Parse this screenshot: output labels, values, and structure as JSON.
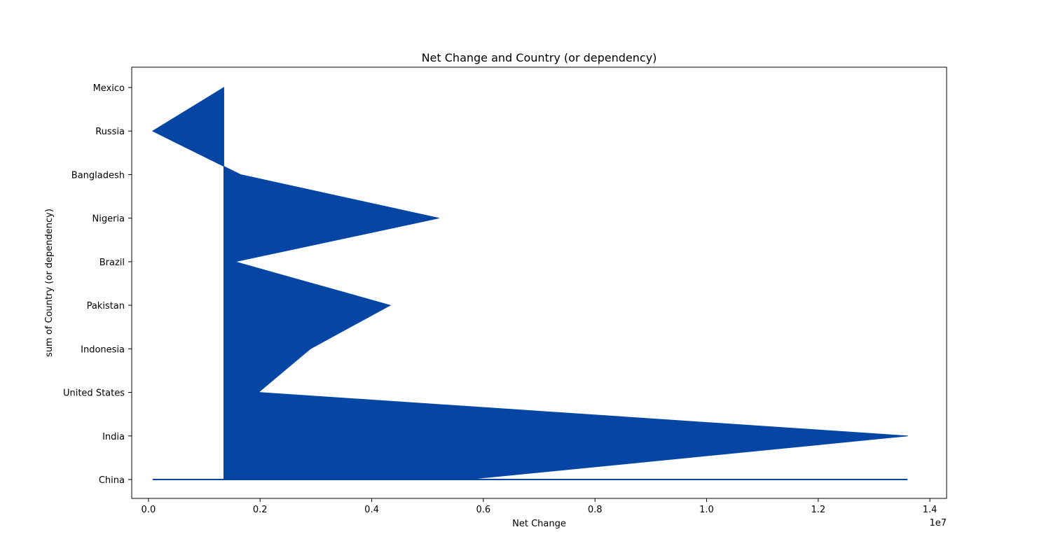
{
  "chart_data": {
    "type": "area",
    "orientation": "horizontal",
    "title": "Net Change and Country (or dependency)",
    "xlabel": "Net Change",
    "ylabel": "sum of Country (or dependency)",
    "x_offset_label": "1e7",
    "x_ticks": [
      "0.0",
      "0.2",
      "0.4",
      "0.6",
      "0.8",
      "1.0",
      "1.2",
      "1.4"
    ],
    "x_tick_values": [
      0,
      2000000,
      4000000,
      6000000,
      8000000,
      10000000,
      12000000,
      14000000
    ],
    "xlim": [
      -300000,
      14300000
    ],
    "categories": [
      "China",
      "India",
      "United States",
      "Indonesia",
      "Pakistan",
      "Brazil",
      "Nigeria",
      "Bangladesh",
      "Russia",
      "Mexico"
    ],
    "series": [
      {
        "values": [
          5700000,
          13600000,
          1970000,
          2900000,
          4330000,
          1550000,
          5200000,
          1650000,
          75000,
          1350000
        ],
        "color": "#0546a5"
      }
    ],
    "baseline": 1350000,
    "baseline_line_range": [
      75000,
      13600000
    ],
    "grid": false,
    "legend": "none"
  }
}
